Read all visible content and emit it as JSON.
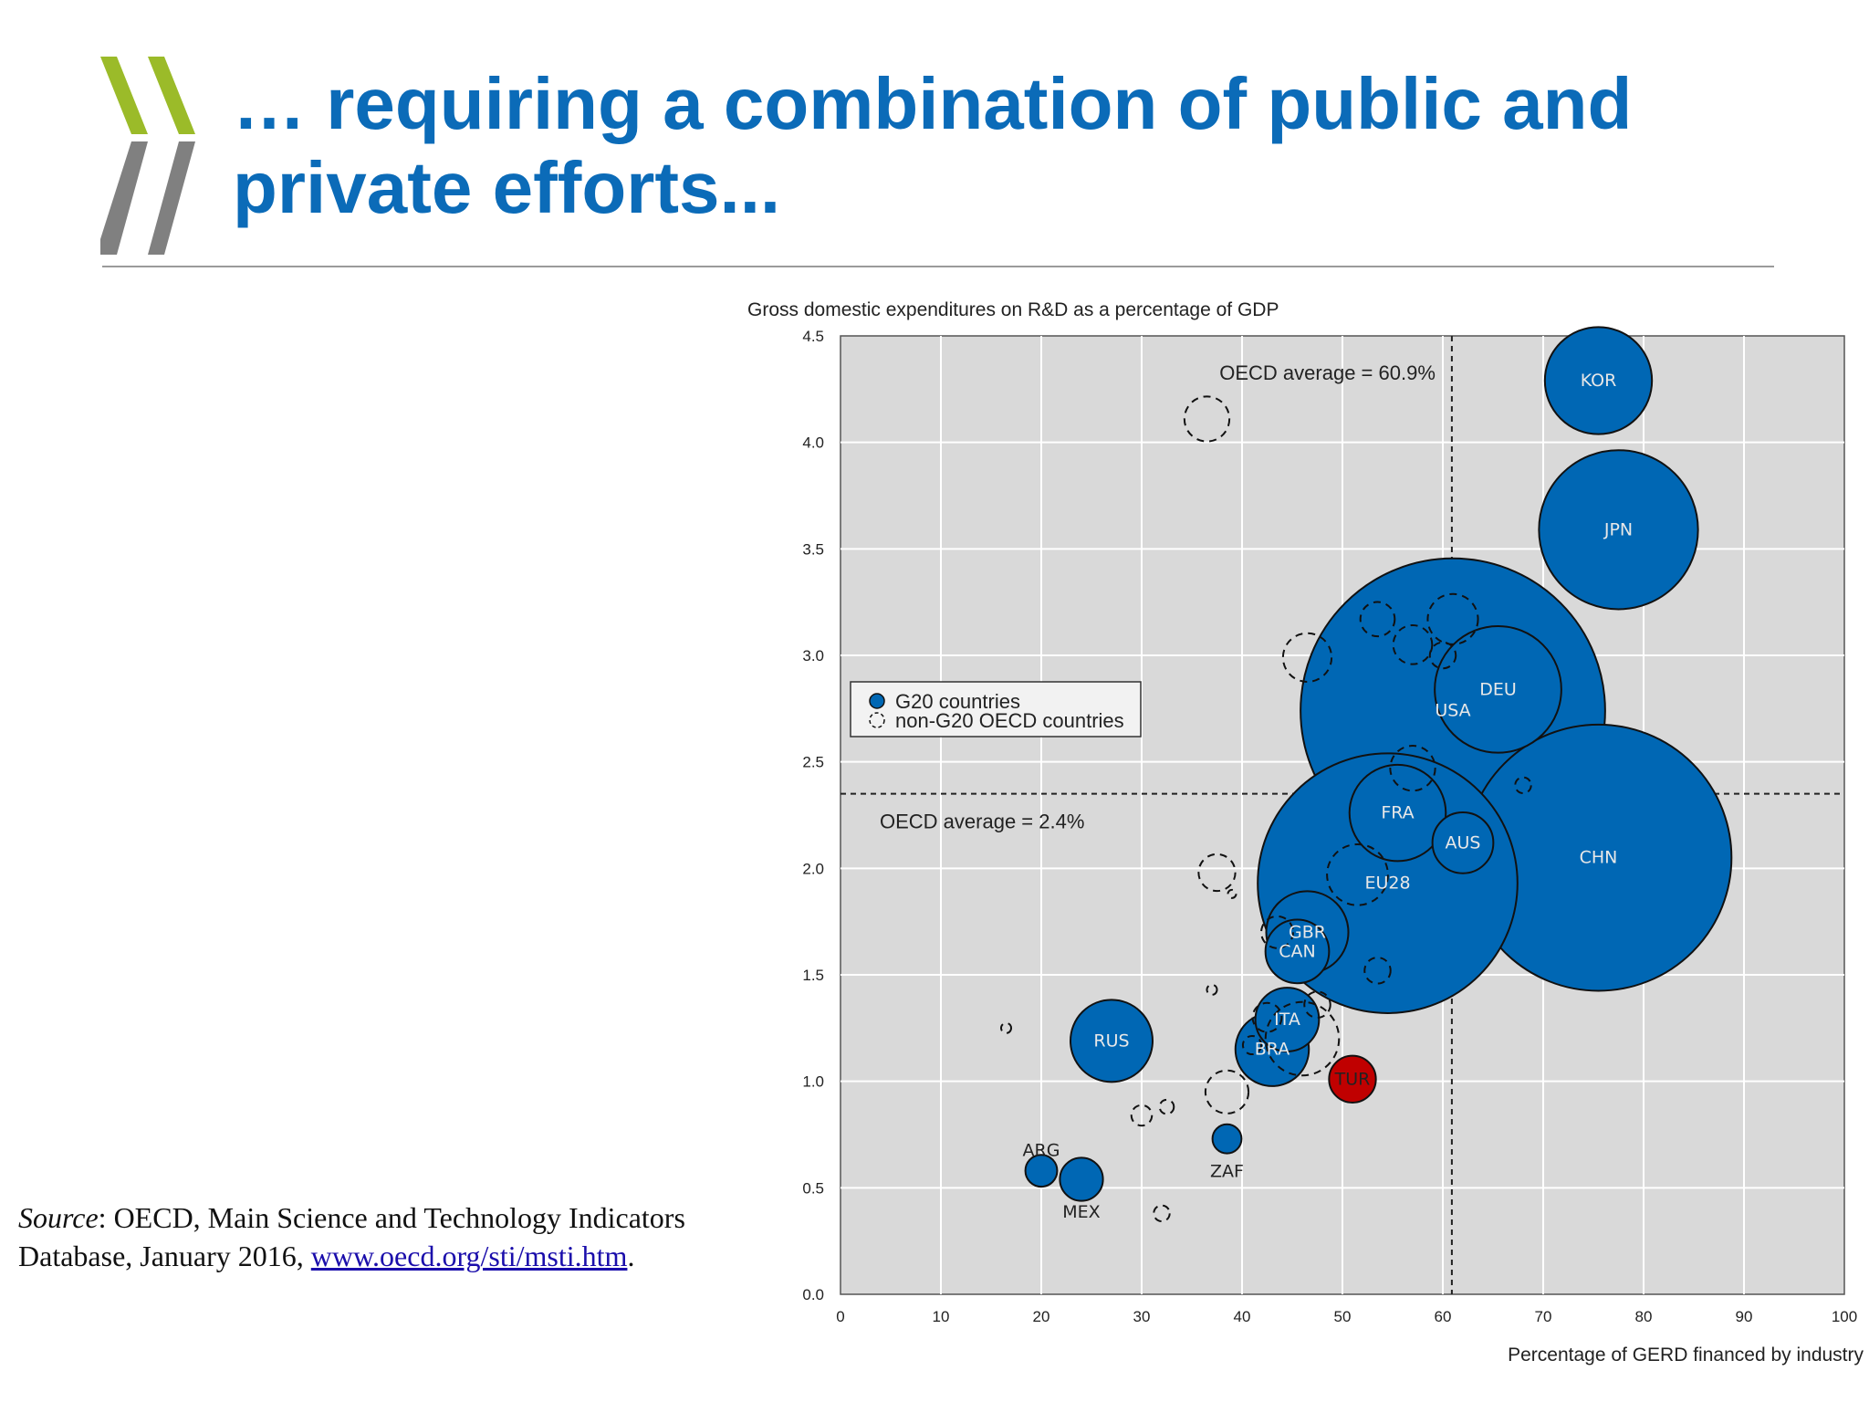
{
  "slide": {
    "title_line1": "… requiring a combination of public and",
    "title_line2": "private efforts...",
    "source_label": "Source",
    "source_text": ": OECD, Main Science and Technology Indicators Database, January 2016, ",
    "source_link": "www.oecd.org/sti/msti.htm",
    "source_end": ".",
    "colors": {
      "title": "#0b6bb8",
      "logo_green": "#9bbb29",
      "logo_gray": "#808080"
    }
  },
  "chart_data": {
    "type": "scatter",
    "title": "",
    "ylabel": "Gross domestic expenditures on R&D as a percentage of GDP",
    "xlabel": "Percentage of GERD financed by industry",
    "xlim": [
      0,
      100
    ],
    "ylim": [
      0,
      4.5
    ],
    "xticks": [
      "0",
      "10",
      "20",
      "30",
      "40",
      "50",
      "60",
      "70",
      "80",
      "90",
      "100"
    ],
    "yticks": [
      "0.0",
      "0.5",
      "1.0",
      "1.5",
      "2.0",
      "2.5",
      "3.0",
      "3.5",
      "4.0",
      "4.5"
    ],
    "grid": true,
    "plot_background": "#d9d9d9",
    "bubble_size": "relative size of GERD",
    "reference_lines": [
      {
        "axis": "x",
        "value": 60.9,
        "label": "OECD average = 60.9%"
      },
      {
        "axis": "y",
        "value": 2.35,
        "label": "OECD average = 2.4%"
      }
    ],
    "legend": {
      "position": "left-middle",
      "entries": [
        {
          "label": "G20 countries",
          "style": "filled",
          "color": "#0067b4"
        },
        {
          "label": "non-G20 OECD countries",
          "style": "dashed-outline"
        }
      ]
    },
    "series": [
      {
        "name": "G20 countries",
        "color": "#0067b4",
        "points": [
          {
            "label": "USA",
            "x": 61,
            "y": 2.74,
            "size": 55
          },
          {
            "label": "EU28",
            "x": 54.5,
            "y": 1.93,
            "size": 40
          },
          {
            "label": "CHN",
            "x": 75.5,
            "y": 2.05,
            "size": 42
          },
          {
            "label": "JPN",
            "x": 77.5,
            "y": 3.59,
            "size": 15
          },
          {
            "label": "KOR",
            "x": 75.5,
            "y": 4.29,
            "size": 6.8
          },
          {
            "label": "DEU",
            "x": 65.5,
            "y": 2.84,
            "size": 9.5
          },
          {
            "label": "FRA",
            "x": 55.5,
            "y": 2.26,
            "size": 5.5
          },
          {
            "label": "GBR",
            "x": 46.5,
            "y": 1.7,
            "size": 4
          },
          {
            "label": "RUS",
            "x": 27,
            "y": 1.19,
            "size": 4
          },
          {
            "label": "BRA",
            "x": 43,
            "y": 1.15,
            "size": 3.2
          },
          {
            "label": "ITA",
            "x": 44.5,
            "y": 1.29,
            "size": 2.4
          },
          {
            "label": "CAN",
            "x": 45.5,
            "y": 1.61,
            "size": 2.4
          },
          {
            "label": "AUS",
            "x": 62,
            "y": 2.12,
            "size": 2.2
          },
          {
            "label": "TUR",
            "x": 51,
            "y": 1.01,
            "size": 1.3
          },
          {
            "label": "MEX",
            "x": 24,
            "y": 0.54,
            "size": 1.1
          },
          {
            "label": "ZAF",
            "x": 38.5,
            "y": 0.73,
            "size": 0.5
          },
          {
            "label": "ARG",
            "x": 20,
            "y": 0.58,
            "size": 0.6
          }
        ]
      },
      {
        "name": "non-G20 OECD countries",
        "style": "dashed-outline",
        "points": [
          {
            "x": 36.5,
            "y": 4.11,
            "size": 1.2
          },
          {
            "x": 46.5,
            "y": 2.99,
            "size": 1.4
          },
          {
            "x": 53.5,
            "y": 3.17,
            "size": 0.7
          },
          {
            "x": 57,
            "y": 3.05,
            "size": 0.9
          },
          {
            "x": 61,
            "y": 3.17,
            "size": 1.5
          },
          {
            "x": 60,
            "y": 3.0,
            "size": 0.4
          },
          {
            "x": 57,
            "y": 2.47,
            "size": 1.2
          },
          {
            "x": 68,
            "y": 2.39,
            "size": 0.15
          },
          {
            "x": 51.5,
            "y": 1.97,
            "size": 2.2
          },
          {
            "x": 37.5,
            "y": 1.98,
            "size": 0.8
          },
          {
            "x": 39,
            "y": 1.88,
            "size": 0.04
          },
          {
            "x": 43.5,
            "y": 1.7,
            "size": 0.6
          },
          {
            "x": 53.5,
            "y": 1.52,
            "size": 0.4
          },
          {
            "x": 37,
            "y": 1.43,
            "size": 0.06
          },
          {
            "x": 47.5,
            "y": 1.36,
            "size": 0.4
          },
          {
            "x": 42.5,
            "y": 1.3,
            "size": 0.5
          },
          {
            "x": 46,
            "y": 1.2,
            "size": 3.2
          },
          {
            "x": 41,
            "y": 1.17,
            "size": 0.2
          },
          {
            "x": 16.5,
            "y": 1.25,
            "size": 0.06
          },
          {
            "x": 38.5,
            "y": 0.95,
            "size": 1.1
          },
          {
            "x": 32.5,
            "y": 0.88,
            "size": 0.12
          },
          {
            "x": 30,
            "y": 0.84,
            "size": 0.25
          },
          {
            "x": 32,
            "y": 0.38,
            "size": 0.15
          }
        ]
      }
    ]
  }
}
